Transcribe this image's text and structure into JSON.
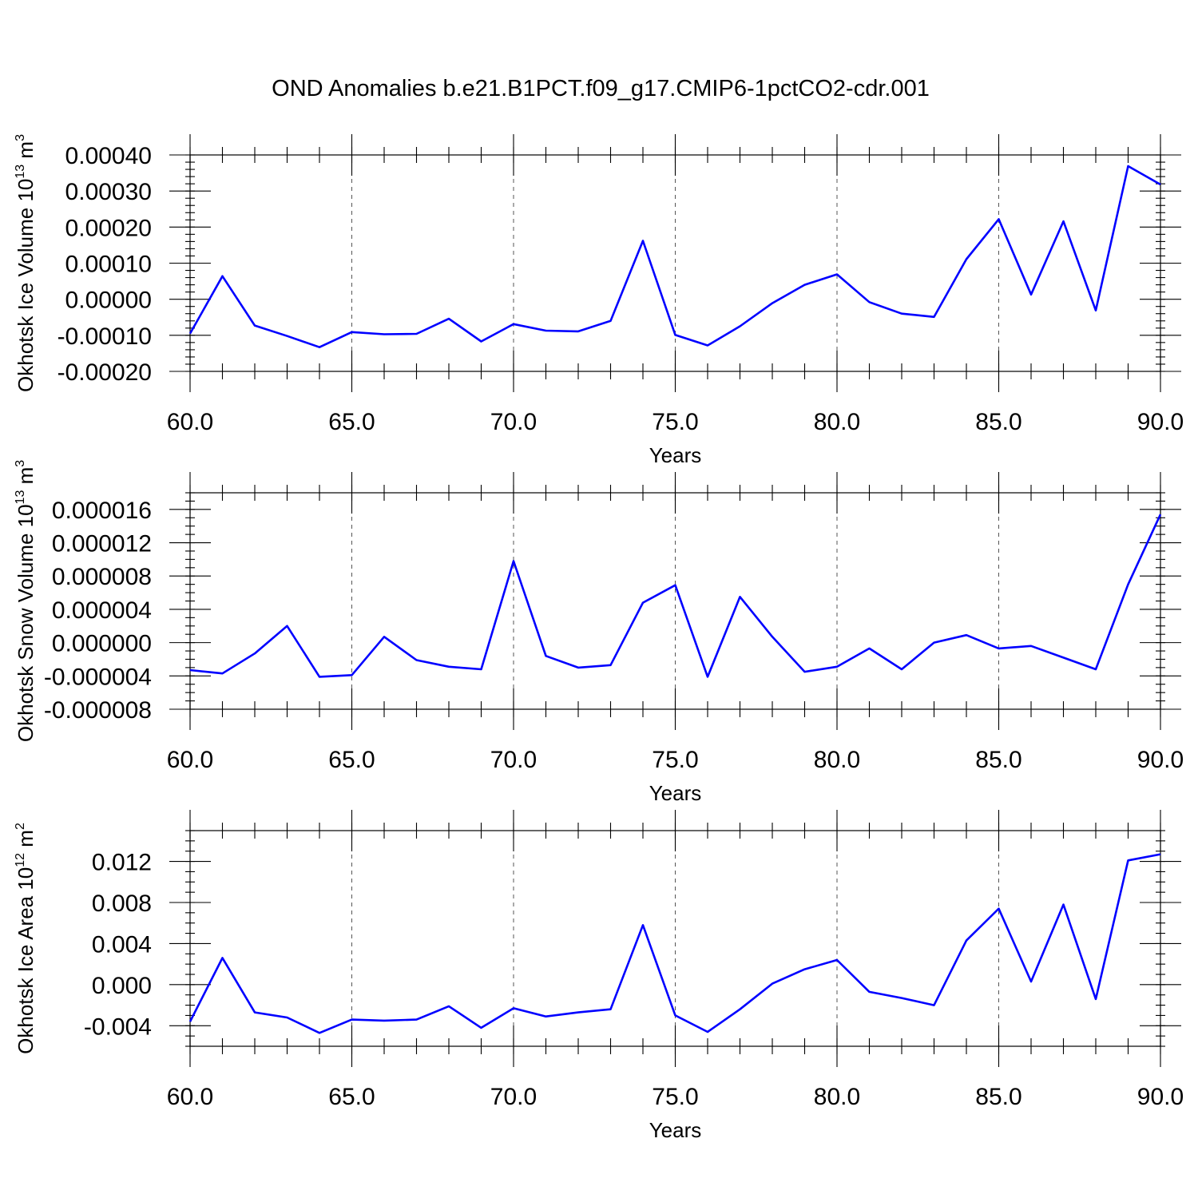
{
  "figure": {
    "title": "OND Anomalies b.e21.B1PCT.f09_g17.CMIP6-1pctCO2-cdr.001"
  },
  "colors": {
    "series": "#0000ff"
  },
  "chart_data": [
    {
      "type": "line",
      "title": "",
      "xlabel": "Years",
      "ylabel": {
        "text": "Okhotsk Ice Volume 10",
        "sup": "13",
        "unit": " m",
        "unit_sup": "3"
      },
      "xlim": [
        60,
        90
      ],
      "ylim": [
        -0.0002,
        0.0004
      ],
      "x_ticks": [
        60,
        65,
        70,
        75,
        80,
        85,
        90
      ],
      "x_tick_labels": [
        "60.0",
        "65.0",
        "70.0",
        "75.0",
        "80.0",
        "85.0",
        "90.0"
      ],
      "x_grid": [
        65,
        70,
        75,
        80,
        85
      ],
      "y_ticks": [
        -0.0002,
        -0.0001,
        0.0,
        0.0001,
        0.0002,
        0.0003,
        0.0004
      ],
      "y_tick_labels": [
        "-0.00020",
        "-0.00010",
        "0.00000",
        "0.00010",
        "0.00020",
        "0.00030",
        "0.00040"
      ],
      "y_minor_step": 2e-05,
      "x": [
        60,
        61,
        62,
        63,
        64,
        65,
        66,
        67,
        68,
        69,
        70,
        71,
        72,
        73,
        74,
        75,
        76,
        77,
        78,
        79,
        80,
        81,
        82,
        83,
        84,
        85,
        86,
        87,
        88,
        89,
        90
      ],
      "values": [
        -9.5e-05,
        6.4e-05,
        -7.3e-05,
        -0.000102,
        -0.000133,
        -9.1e-05,
        -9.7e-05,
        -9.6e-05,
        -5.4e-05,
        -0.000117,
        -6.9e-05,
        -8.7e-05,
        -8.9e-05,
        -6e-05,
        0.000162,
        -9.9e-05,
        -0.000128,
        -7.5e-05,
        -1.1e-05,
        4e-05,
        6.9e-05,
        -8e-06,
        -4e-05,
        -4.9e-05,
        0.000111,
        0.000222,
        1.3e-05,
        0.000216,
        -3.1e-05,
        0.000369,
        0.000318
      ]
    },
    {
      "type": "line",
      "title": "",
      "xlabel": "Years",
      "ylabel": {
        "text": "Okhotsk Snow Volume 10",
        "sup": "13",
        "unit": " m",
        "unit_sup": "3"
      },
      "xlim": [
        60,
        90
      ],
      "ylim": [
        -8e-06,
        1.8e-05
      ],
      "x_ticks": [
        60,
        65,
        70,
        75,
        80,
        85,
        90
      ],
      "x_tick_labels": [
        "60.0",
        "65.0",
        "70.0",
        "75.0",
        "80.0",
        "85.0",
        "90.0"
      ],
      "x_grid": [
        65,
        70,
        75,
        80,
        85
      ],
      "y_ticks": [
        -8e-06,
        -4e-06,
        0.0,
        4e-06,
        8e-06,
        1.2e-05,
        1.6e-05
      ],
      "y_tick_labels": [
        "-0.000008",
        "-0.000004",
        "0.000000",
        "0.000004",
        "0.000008",
        "0.000012",
        "0.000016"
      ],
      "y_minor_step": 1e-06,
      "x": [
        60,
        61,
        62,
        63,
        64,
        65,
        66,
        67,
        68,
        69,
        70,
        71,
        72,
        73,
        74,
        75,
        76,
        77,
        78,
        79,
        80,
        81,
        82,
        83,
        84,
        85,
        86,
        87,
        88,
        89,
        90
      ],
      "values": [
        -3.3e-06,
        -3.7e-06,
        -1.3e-06,
        2e-06,
        -4.1e-06,
        -3.9e-06,
        7e-07,
        -2.1e-06,
        -2.9e-06,
        -3.2e-06,
        9.8e-06,
        -1.6e-06,
        -3e-06,
        -2.7e-06,
        4.8e-06,
        6.9e-06,
        -4.1e-06,
        5.5e-06,
        7e-07,
        -3.5e-06,
        -2.9e-06,
        -7e-07,
        -3.2e-06,
        0.0,
        9e-07,
        -7e-07,
        -4e-07,
        -1.8e-06,
        -3.2e-06,
        7e-06,
        1.54e-05
      ]
    },
    {
      "type": "line",
      "title": "",
      "xlabel": "Years",
      "ylabel": {
        "text": "Okhotsk Ice Area 10",
        "sup": "12",
        "unit": " m",
        "unit_sup": "2"
      },
      "xlim": [
        60,
        90
      ],
      "ylim": [
        -0.006,
        0.015
      ],
      "x_ticks": [
        60,
        65,
        70,
        75,
        80,
        85,
        90
      ],
      "x_tick_labels": [
        "60.0",
        "65.0",
        "70.0",
        "75.0",
        "80.0",
        "85.0",
        "90.0"
      ],
      "x_grid": [
        65,
        70,
        75,
        80,
        85
      ],
      "y_ticks": [
        -0.004,
        0.0,
        0.004,
        0.008,
        0.012
      ],
      "y_tick_labels": [
        "-0.004",
        "0.000",
        "0.004",
        "0.008",
        "0.012"
      ],
      "y_minor_step": 0.001,
      "x": [
        60,
        61,
        62,
        63,
        64,
        65,
        66,
        67,
        68,
        69,
        70,
        71,
        72,
        73,
        74,
        75,
        76,
        77,
        78,
        79,
        80,
        81,
        82,
        83,
        84,
        85,
        86,
        87,
        88,
        89,
        90
      ],
      "values": [
        -0.0036,
        0.0026,
        -0.0027,
        -0.0032,
        -0.0047,
        -0.0034,
        -0.0035,
        -0.0034,
        -0.0021,
        -0.0042,
        -0.0023,
        -0.0031,
        -0.0027,
        -0.0024,
        0.0058,
        -0.003,
        -0.0046,
        -0.0024,
        0.0001,
        0.0015,
        0.0024,
        -0.0007,
        -0.0013,
        -0.002,
        0.0043,
        0.0074,
        0.0003,
        0.0078,
        -0.0014,
        0.0121,
        0.0127
      ]
    }
  ]
}
